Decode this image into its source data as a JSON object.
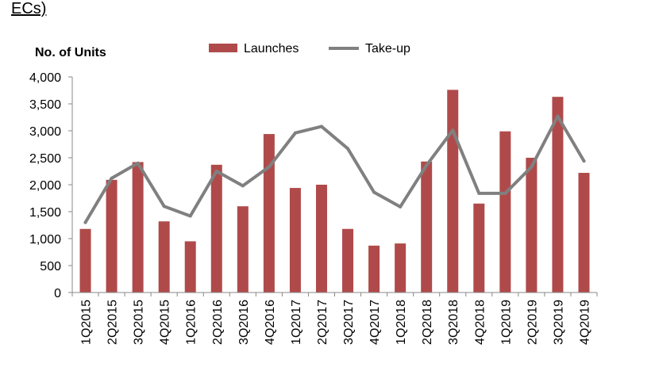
{
  "header_fragment": "ECs)",
  "chart_data": {
    "type": "bar",
    "title": "",
    "xlabel": "",
    "ylabel": "No. of Units",
    "ylim": [
      0,
      4000
    ],
    "yticks": [
      0,
      500,
      1000,
      1500,
      2000,
      2500,
      3000,
      3500,
      4000
    ],
    "ytick_labels": [
      "0",
      "500",
      "1,000",
      "1,500",
      "2,000",
      "2,500",
      "3,000",
      "3,500",
      "4,000"
    ],
    "grid": false,
    "legend_position": "top",
    "categories": [
      "1Q2015",
      "2Q2015",
      "3Q2015",
      "4Q2015",
      "1Q2016",
      "2Q2016",
      "3Q2016",
      "4Q2016",
      "1Q2017",
      "2Q2017",
      "3Q2017",
      "4Q2017",
      "1Q2018",
      "2Q2018",
      "3Q2018",
      "4Q2018",
      "1Q2019",
      "2Q2019",
      "3Q2019",
      "4Q2019"
    ],
    "series": [
      {
        "name": "Launches",
        "type": "bar",
        "color": "#b04a4a",
        "values": [
          1180,
          2090,
          2420,
          1320,
          950,
          2370,
          1600,
          2940,
          1940,
          2000,
          1180,
          870,
          910,
          2430,
          3760,
          1650,
          2990,
          2500,
          3630,
          2220
        ]
      },
      {
        "name": "Take-up",
        "type": "line",
        "color": "#808080",
        "values": [
          1300,
          2120,
          2400,
          1600,
          1420,
          2250,
          1980,
          2330,
          2960,
          3080,
          2670,
          1860,
          1590,
          2360,
          3010,
          1840,
          1840,
          2330,
          3270,
          2440
        ]
      }
    ]
  }
}
